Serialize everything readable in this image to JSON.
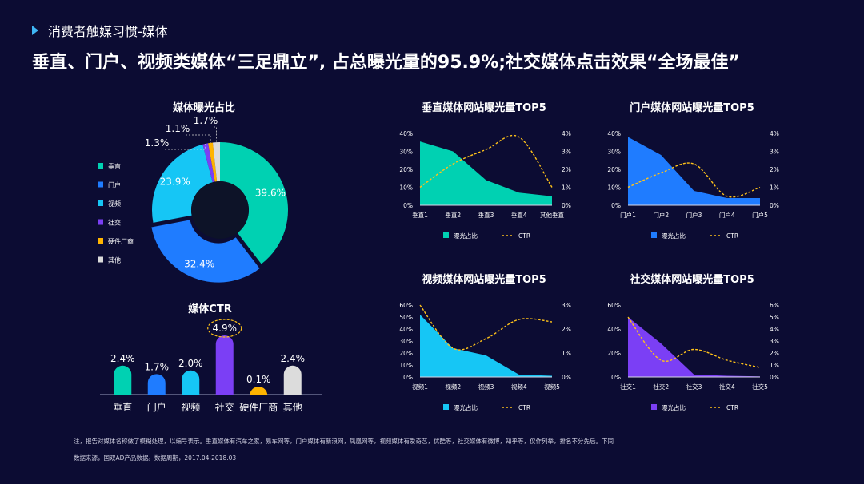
{
  "section_title": "消费者触媒习惯-媒体",
  "headline": "垂直、门户、视频类媒体“三足鼎立”, 占总曝光量的95.9%;社交媒体点击效果“全场最佳”",
  "colors": {
    "bg": "#0c0c33",
    "垂直": "#00d1b2",
    "门户": "#1f7cff",
    "视频": "#16c6f5",
    "社交": "#7b3ff5",
    "硬件厂商": "#ffb400",
    "其他": "#dcdcdc",
    "ctr_line": "#ffc21a"
  },
  "chart_data": [
    {
      "type": "pie",
      "title": "媒体曝光占比",
      "categories": [
        "垂直",
        "门户",
        "视频",
        "社交",
        "硬件厂商",
        "其他"
      ],
      "values": [
        39.6,
        32.4,
        23.9,
        1.3,
        1.1,
        1.7
      ],
      "labels": [
        "39.6%",
        "32.4%",
        "23.9%",
        "1.3%",
        "1.1%",
        "1.7%"
      ],
      "legend": "left"
    },
    {
      "type": "bar",
      "title": "媒体CTR",
      "categories": [
        "垂直",
        "门户",
        "视频",
        "社交",
        "硬件厂商",
        "其他"
      ],
      "values": [
        2.4,
        1.7,
        2.0,
        4.9,
        0.1,
        2.4
      ],
      "labels": [
        "2.4%",
        "1.7%",
        "2.0%",
        "4.9%",
        "0.1%",
        "2.4%"
      ],
      "highlight": "社交"
    },
    {
      "type": "area",
      "title": "垂直媒体网站曝光量TOP5",
      "categories": [
        "垂直1",
        "垂直2",
        "垂直3",
        "垂直4",
        "其他垂直"
      ],
      "series": [
        {
          "name": "曝光占比",
          "values": [
            35.5,
            30,
            14,
            7,
            5
          ]
        },
        {
          "name": "CTR",
          "values": [
            1.0,
            2.3,
            3.1,
            3.8,
            1.0
          ]
        }
      ],
      "yticks": [
        "0%",
        "10%",
        "20%",
        "30%",
        "40%"
      ],
      "y2ticks": [
        "0%",
        "1%",
        "2%",
        "3%",
        "4%"
      ],
      "ylim": [
        0,
        40
      ],
      "y2lim": [
        0,
        4
      ]
    },
    {
      "type": "area",
      "title": "门户媒体网站曝光量TOP5",
      "categories": [
        "门户1",
        "门户2",
        "门户3",
        "门户4",
        "门户5"
      ],
      "series": [
        {
          "name": "曝光占比",
          "values": [
            38,
            28,
            8,
            4,
            4
          ]
        },
        {
          "name": "CTR",
          "values": [
            1.0,
            1.8,
            2.3,
            0.5,
            1.0
          ]
        }
      ],
      "yticks": [
        "0%",
        "10%",
        "20%",
        "30%",
        "40%"
      ],
      "y2ticks": [
        "0%",
        "1%",
        "2%",
        "3%",
        "4%"
      ],
      "ylim": [
        0,
        40
      ],
      "y2lim": [
        0,
        4
      ]
    },
    {
      "type": "area",
      "title": "视频媒体网站曝光量TOP5",
      "categories": [
        "视频1",
        "视频2",
        "视频3",
        "视频4",
        "视频5"
      ],
      "series": [
        {
          "name": "曝光占比",
          "values": [
            52,
            24,
            18,
            2,
            1
          ]
        },
        {
          "name": "CTR",
          "values": [
            3.0,
            1.2,
            1.6,
            2.4,
            2.3
          ]
        }
      ],
      "yticks": [
        "0%",
        "10%",
        "20%",
        "30%",
        "40%",
        "50%",
        "60%"
      ],
      "y2ticks": [
        "0%",
        "1%",
        "2%",
        "3%"
      ],
      "ylim": [
        0,
        60
      ],
      "y2lim": [
        0,
        3
      ]
    },
    {
      "type": "area",
      "title": "社交媒体网站曝光量TOP5",
      "categories": [
        "社交1",
        "社交2",
        "社交3",
        "社交4",
        "社交5"
      ],
      "series": [
        {
          "name": "曝光占比",
          "values": [
            50,
            28,
            2,
            1,
            0.5
          ]
        },
        {
          "name": "CTR",
          "values": [
            5.0,
            1.4,
            2.3,
            1.4,
            0.8
          ]
        }
      ],
      "yticks": [
        "0%",
        "20%",
        "40%",
        "60%"
      ],
      "y2ticks": [
        "0%",
        "1%",
        "2%",
        "3%",
        "4%",
        "5%",
        "6%"
      ],
      "ylim": [
        0,
        60
      ],
      "y2lim": [
        0,
        6
      ]
    }
  ],
  "footnotes": [
    "注，报告对媒体名称做了模糊处理，以编号表示。垂直媒体有汽车之家，易车网等，门户媒体有新浪网，凤凰网等，视频媒体有爱奇艺，优酷等，社交媒体有微博，知乎等，仅作列举，排名不分先后。下同",
    "数据来源，国双AD产品数据。数据周期，2017.04-2018.03"
  ]
}
